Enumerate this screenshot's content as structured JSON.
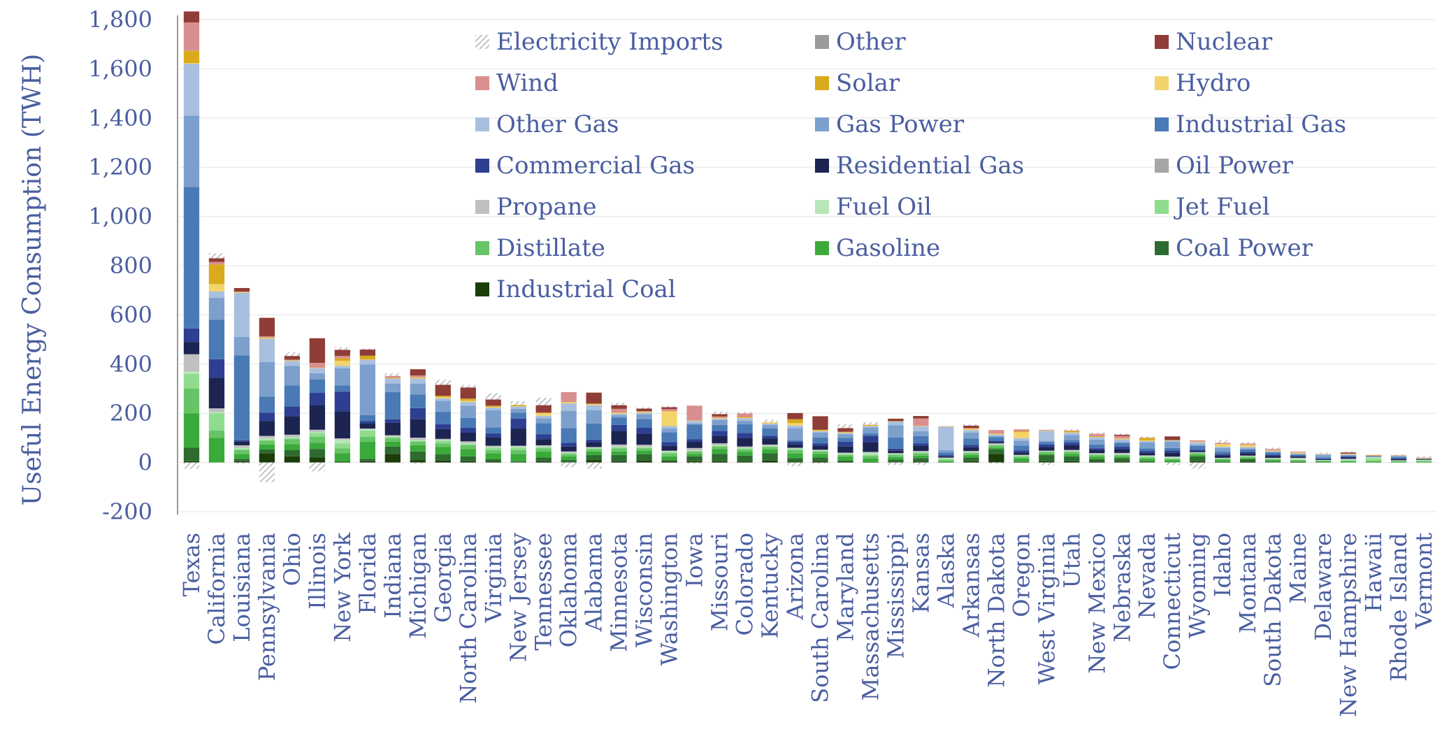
{
  "chart_data": {
    "type": "bar",
    "stacked": true,
    "title": "",
    "ylabel": "Useful Energy Consumption (TWH)",
    "xlabel": "",
    "ylim": [
      -200,
      1800
    ],
    "yticks": [
      -200,
      0,
      200,
      400,
      600,
      800,
      1000,
      1200,
      1400,
      1600,
      1800
    ],
    "ytick_labels": [
      "-200",
      "0",
      "200",
      "400",
      "600",
      "800",
      "1,000",
      "1,200",
      "1,400",
      "1,600",
      "1,800"
    ],
    "grid": true,
    "legend_position": "top-right",
    "categories": [
      "Texas",
      "California",
      "Louisiana",
      "Pennsylvania",
      "Ohio",
      "Illinois",
      "New York",
      "Florida",
      "Indiana",
      "Michigan",
      "Georgia",
      "North Carolina",
      "Virginia",
      "New Jersey",
      "Tennessee",
      "Oklahoma",
      "Alabama",
      "Minnesota",
      "Wisconsin",
      "Washington",
      "Iowa",
      "Missouri",
      "Colorado",
      "Kentucky",
      "Arizona",
      "South Carolina",
      "Maryland",
      "Massachusetts",
      "Mississippi",
      "Kansas",
      "Alaska",
      "Arkansas",
      "North Dakota",
      "Oregon",
      "West Virginia",
      "Utah",
      "New Mexico",
      "Nebraska",
      "Nevada",
      "Connecticut",
      "Wyoming",
      "Idaho",
      "Montana",
      "South Dakota",
      "Maine",
      "Delaware",
      "New Hampshire",
      "Hawaii",
      "Rhode Island",
      "Vermont"
    ],
    "series": [
      {
        "name": "Industrial Coal",
        "color": "#1b3d0a",
        "values": [
          5,
          0,
          5,
          38,
          25,
          20,
          3,
          5,
          35,
          10,
          8,
          5,
          3,
          0,
          5,
          0,
          10,
          5,
          8,
          5,
          5,
          5,
          3,
          8,
          3,
          5,
          3,
          2,
          2,
          3,
          0,
          5,
          35,
          2,
          5,
          5,
          3,
          3,
          0,
          0,
          5,
          2,
          3,
          1,
          2,
          0,
          0,
          0,
          0,
          0
        ]
      },
      {
        "name": "Coal Power",
        "color": "#2e6b30",
        "values": [
          55,
          0,
          10,
          15,
          25,
          35,
          0,
          10,
          30,
          35,
          25,
          20,
          10,
          5,
          15,
          10,
          20,
          25,
          25,
          5,
          20,
          30,
          25,
          30,
          15,
          15,
          5,
          0,
          10,
          15,
          2,
          15,
          20,
          2,
          25,
          20,
          10,
          15,
          5,
          0,
          20,
          0,
          10,
          3,
          0,
          2,
          0,
          0,
          0,
          0
        ]
      },
      {
        "name": "Gasoline",
        "color": "#3aaa3a",
        "values": [
          140,
          100,
          20,
          20,
          25,
          25,
          35,
          70,
          20,
          25,
          30,
          30,
          25,
          30,
          25,
          15,
          15,
          15,
          15,
          15,
          10,
          20,
          15,
          15,
          20,
          15,
          15,
          15,
          10,
          10,
          3,
          10,
          5,
          12,
          5,
          10,
          10,
          5,
          10,
          10,
          5,
          8,
          5,
          5,
          5,
          3,
          5,
          5,
          3,
          3
        ]
      },
      {
        "name": "Distillate",
        "color": "#66c466",
        "values": [
          100,
          30,
          15,
          15,
          20,
          25,
          20,
          20,
          15,
          15,
          15,
          15,
          12,
          15,
          12,
          10,
          10,
          12,
          10,
          12,
          10,
          10,
          10,
          10,
          12,
          10,
          8,
          10,
          8,
          10,
          5,
          8,
          10,
          8,
          8,
          8,
          8,
          8,
          5,
          5,
          8,
          5,
          5,
          5,
          3,
          2,
          3,
          2,
          2,
          2
        ]
      },
      {
        "name": "Jet Fuel",
        "color": "#8fdc8f",
        "values": [
          60,
          70,
          5,
          5,
          5,
          15,
          20,
          25,
          3,
          3,
          10,
          5,
          10,
          10,
          5,
          3,
          3,
          5,
          3,
          5,
          2,
          3,
          5,
          3,
          5,
          2,
          3,
          5,
          3,
          2,
          5,
          2,
          1,
          3,
          1,
          3,
          2,
          1,
          5,
          2,
          1,
          1,
          1,
          1,
          1,
          1,
          1,
          10,
          1,
          1
        ]
      },
      {
        "name": "Fuel Oil",
        "color": "#b8e6b8",
        "values": [
          10,
          5,
          5,
          5,
          3,
          3,
          15,
          5,
          3,
          3,
          3,
          3,
          3,
          5,
          3,
          2,
          2,
          3,
          3,
          3,
          2,
          2,
          2,
          2,
          2,
          2,
          3,
          8,
          2,
          2,
          3,
          2,
          2,
          2,
          2,
          2,
          2,
          2,
          2,
          5,
          1,
          1,
          1,
          1,
          5,
          1,
          3,
          5,
          2,
          3
        ]
      },
      {
        "name": "Propane",
        "color": "#c0c0c0",
        "values": [
          70,
          15,
          10,
          10,
          10,
          10,
          5,
          3,
          5,
          10,
          5,
          8,
          5,
          3,
          5,
          5,
          3,
          8,
          8,
          3,
          10,
          8,
          5,
          5,
          3,
          3,
          3,
          3,
          3,
          5,
          2,
          5,
          5,
          2,
          2,
          3,
          3,
          5,
          2,
          2,
          2,
          2,
          3,
          3,
          3,
          1,
          3,
          1,
          1,
          2
        ]
      },
      {
        "name": "Oil Power",
        "color": "#a6a6a6",
        "values": [
          0,
          0,
          0,
          0,
          0,
          0,
          0,
          0,
          0,
          0,
          0,
          0,
          0,
          0,
          0,
          0,
          0,
          0,
          0,
          0,
          0,
          0,
          0,
          0,
          0,
          0,
          0,
          0,
          0,
          0,
          0,
          0,
          0,
          0,
          0,
          0,
          0,
          0,
          0,
          0,
          0,
          0,
          0,
          0,
          0,
          0,
          0,
          0,
          0,
          0
        ]
      },
      {
        "name": "Residential Gas",
        "color": "#1c2451",
        "values": [
          50,
          125,
          15,
          60,
          75,
          100,
          110,
          20,
          50,
          75,
          40,
          35,
          35,
          70,
          25,
          20,
          20,
          55,
          45,
          20,
          25,
          30,
          35,
          25,
          15,
          15,
          25,
          40,
          10,
          20,
          5,
          15,
          5,
          10,
          15,
          20,
          12,
          15,
          10,
          15,
          5,
          10,
          10,
          8,
          5,
          3,
          5,
          1,
          5,
          2
        ]
      },
      {
        "name": "Commercial Gas",
        "color": "#2e3f91",
        "values": [
          55,
          75,
          5,
          35,
          40,
          50,
          80,
          10,
          15,
          45,
          20,
          20,
          15,
          40,
          20,
          15,
          10,
          25,
          25,
          15,
          10,
          20,
          20,
          10,
          10,
          10,
          20,
          25,
          8,
          10,
          5,
          10,
          5,
          8,
          10,
          10,
          8,
          10,
          8,
          10,
          5,
          5,
          5,
          5,
          3,
          2,
          3,
          1,
          3,
          1
        ]
      },
      {
        "name": "Industrial Gas",
        "color": "#4a7ab5",
        "values": [
          575,
          160,
          345,
          65,
          85,
          55,
          25,
          25,
          110,
          55,
          50,
          40,
          25,
          25,
          45,
          60,
          65,
          30,
          35,
          40,
          60,
          25,
          35,
          30,
          5,
          25,
          15,
          10,
          45,
          30,
          10,
          25,
          15,
          20,
          10,
          10,
          15,
          15,
          10,
          10,
          15,
          10,
          10,
          8,
          5,
          5,
          3,
          2,
          5,
          2
        ]
      },
      {
        "name": "Gas Power",
        "color": "#7d9fcc",
        "values": [
          290,
          90,
          75,
          140,
          80,
          25,
          70,
          205,
          35,
          45,
          45,
          50,
          70,
          15,
          20,
          70,
          55,
          10,
          20,
          15,
          5,
          20,
          15,
          15,
          50,
          20,
          15,
          25,
          50,
          20,
          10,
          25,
          5,
          20,
          5,
          20,
          20,
          5,
          25,
          25,
          5,
          15,
          5,
          3,
          3,
          10,
          5,
          0,
          5,
          0
        ]
      },
      {
        "name": "Other Gas",
        "color": "#a9bfde",
        "values": [
          210,
          25,
          180,
          95,
          20,
          20,
          10,
          20,
          20,
          20,
          10,
          15,
          10,
          10,
          10,
          30,
          20,
          5,
          5,
          10,
          10,
          5,
          10,
          5,
          10,
          5,
          5,
          5,
          15,
          20,
          95,
          10,
          5,
          10,
          40,
          10,
          10,
          10,
          5,
          5,
          10,
          5,
          5,
          3,
          2,
          3,
          1,
          0,
          1,
          0
        ]
      },
      {
        "name": "Hydro",
        "color": "#f3d46a",
        "values": [
          3,
          30,
          3,
          3,
          1,
          1,
          20,
          1,
          1,
          3,
          5,
          5,
          3,
          1,
          10,
          5,
          5,
          3,
          3,
          60,
          1,
          3,
          2,
          5,
          10,
          3,
          2,
          2,
          1,
          1,
          2,
          5,
          3,
          25,
          2,
          2,
          1,
          3,
          3,
          1,
          2,
          10,
          8,
          3,
          3,
          0,
          2,
          0,
          0,
          2
        ]
      },
      {
        "name": "Solar",
        "color": "#d9aa1b",
        "values": [
          50,
          80,
          1,
          2,
          2,
          1,
          10,
          15,
          2,
          2,
          5,
          8,
          5,
          5,
          2,
          1,
          1,
          2,
          1,
          1,
          1,
          1,
          3,
          1,
          15,
          3,
          2,
          3,
          1,
          1,
          0,
          1,
          1,
          3,
          0,
          5,
          3,
          1,
          10,
          1,
          1,
          1,
          1,
          1,
          1,
          1,
          1,
          2,
          1,
          1
        ]
      },
      {
        "name": "Wind",
        "color": "#d98f8f",
        "values": [
          115,
          10,
          0,
          5,
          2,
          20,
          10,
          0,
          8,
          8,
          0,
          1,
          0,
          0,
          1,
          40,
          0,
          15,
          3,
          8,
          60,
          5,
          15,
          0,
          1,
          0,
          1,
          1,
          0,
          30,
          1,
          2,
          15,
          8,
          3,
          2,
          10,
          10,
          1,
          0,
          5,
          5,
          5,
          5,
          3,
          1,
          1,
          2,
          1,
          1
        ]
      },
      {
        "name": "Nuclear",
        "color": "#8f3d36",
        "values": [
          45,
          15,
          15,
          75,
          15,
          100,
          25,
          25,
          0,
          25,
          45,
          45,
          25,
          0,
          30,
          0,
          45,
          15,
          10,
          8,
          0,
          10,
          0,
          0,
          25,
          55,
          15,
          0,
          10,
          10,
          0,
          10,
          0,
          0,
          0,
          0,
          0,
          5,
          0,
          15,
          0,
          0,
          0,
          0,
          0,
          0,
          5,
          0,
          0,
          0
        ]
      },
      {
        "name": "Other",
        "color": "#9b9b9b",
        "values": [
          0,
          0,
          0,
          0,
          0,
          0,
          0,
          0,
          0,
          0,
          0,
          0,
          0,
          0,
          0,
          0,
          0,
          0,
          0,
          0,
          0,
          0,
          0,
          0,
          0,
          0,
          0,
          0,
          0,
          0,
          0,
          0,
          0,
          0,
          0,
          0,
          0,
          0,
          0,
          0,
          0,
          0,
          0,
          0,
          0,
          0,
          0,
          0,
          0,
          0
        ]
      },
      {
        "name": "Electricity Imports",
        "color": "#b5b5b5",
        "pattern": "hatched",
        "values": [
          -25,
          20,
          -5,
          -80,
          15,
          -35,
          10,
          5,
          10,
          -5,
          20,
          10,
          25,
          15,
          30,
          -20,
          -25,
          10,
          5,
          5,
          -5,
          10,
          5,
          10,
          -15,
          -5,
          15,
          10,
          -10,
          -10,
          0,
          5,
          -5,
          0,
          -10,
          5,
          5,
          5,
          5,
          -10,
          -25,
          10,
          5,
          5,
          0,
          5,
          5,
          0,
          3,
          5
        ]
      }
    ]
  },
  "legend_layout": {
    "columns": 3
  }
}
